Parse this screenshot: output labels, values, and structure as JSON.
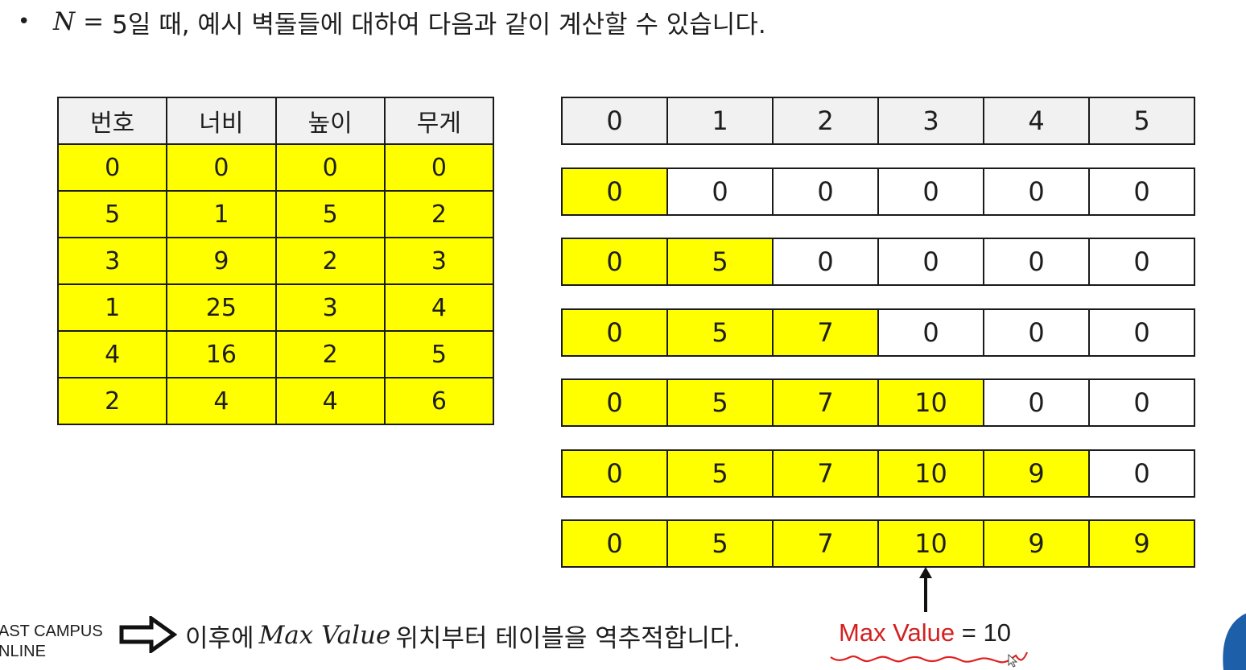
{
  "intro": {
    "bullet": "•",
    "var": "N",
    "op": "=",
    "text": "5일 때, 예시 벽돌들에 대하여 다음과 같이 계산할 수 있습니다."
  },
  "bricks_table": {
    "headers": [
      "번호",
      "너비",
      "높이",
      "무게"
    ],
    "rows": [
      [
        "0",
        "0",
        "0",
        "0"
      ],
      [
        "5",
        "1",
        "5",
        "2"
      ],
      [
        "3",
        "9",
        "2",
        "3"
      ],
      [
        "1",
        "25",
        "3",
        "4"
      ],
      [
        "4",
        "16",
        "2",
        "5"
      ],
      [
        "2",
        "4",
        "4",
        "6"
      ]
    ],
    "highlight_color": "#ffff00"
  },
  "dp_table": {
    "header": [
      "0",
      "1",
      "2",
      "3",
      "4",
      "5"
    ],
    "rows": [
      [
        "0",
        "0",
        "0",
        "0",
        "0",
        "0"
      ],
      [
        "0",
        "5",
        "0",
        "0",
        "0",
        "0"
      ],
      [
        "0",
        "5",
        "7",
        "0",
        "0",
        "0"
      ],
      [
        "0",
        "5",
        "7",
        "10",
        "0",
        "0"
      ],
      [
        "0",
        "5",
        "7",
        "10",
        "9",
        "0"
      ],
      [
        "0",
        "5",
        "7",
        "10",
        "9",
        "9"
      ]
    ],
    "highlighted_counts": [
      1,
      2,
      3,
      4,
      5,
      6
    ]
  },
  "footer": {
    "logo_line1": "AST CAMPUS",
    "logo_line2": "NLINE",
    "text_before": "이후에 ",
    "math": "Max Value",
    "text_after": " 위치부터 테이블을 역추적합니다."
  },
  "max_note": {
    "label": "Max Value",
    "rest": " = 10",
    "label_color": "#d42020"
  }
}
